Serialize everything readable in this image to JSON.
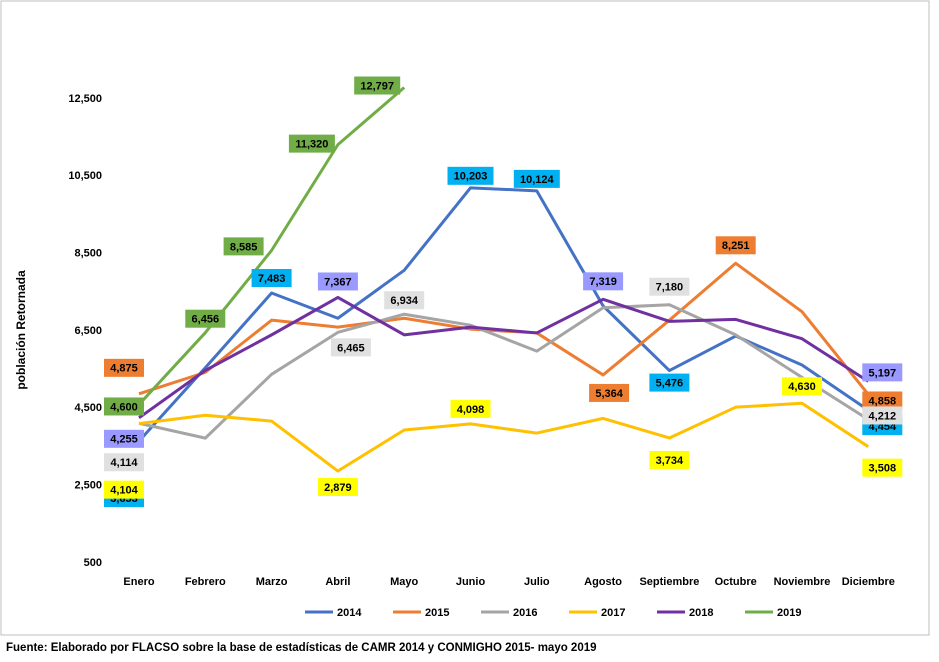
{
  "chart_data": {
    "type": "line",
    "y_label": "población Retornada",
    "footnote": "Fuente: Elaborado por FLACSO sobre la base de estadísticas de CAMR 2014 y CONMIGHO 2015- mayo 2019",
    "categories": [
      "Enero",
      "Febrero",
      "Marzo",
      "Abril",
      "Mayo",
      "Junio",
      "Julio",
      "Agosto",
      "Septiembre",
      "Octubre",
      "Noviembre",
      "Diciembre"
    ],
    "ylim": [
      500,
      14500
    ],
    "yticks": [
      500,
      {
        "value": 2500,
        "label": "2,500"
      },
      {
        "value": 4500,
        "label": "4,500"
      },
      {
        "value": 6500,
        "label": "6,500"
      },
      {
        "value": 8500,
        "label": "8,500"
      },
      {
        "value": 10500,
        "label": "10,500"
      },
      {
        "value": 12500,
        "label": "12,500"
      }
    ],
    "grid": false,
    "legend": "bottom",
    "series": [
      {
        "name": "2014",
        "color": "#4472c4",
        "label_color": "#00b0f0",
        "values": [
          3653,
          5550,
          7483,
          6830,
          8070,
          10203,
          10124,
          7150,
          5476,
          6370,
          5620,
          4454
        ],
        "value_labels": [
          "3,653",
          null,
          "7,483",
          null,
          null,
          "10,203",
          "10,124",
          null,
          "5,476",
          null,
          null,
          "4,454"
        ]
      },
      {
        "name": "2015",
        "color": "#ed7d31",
        "label_color": "#ed7d31",
        "values": [
          4875,
          5430,
          6780,
          6600,
          6830,
          6550,
          6450,
          5364,
          6780,
          8251,
          7000,
          4858
        ],
        "value_labels": [
          "4,875",
          null,
          null,
          null,
          null,
          null,
          null,
          "5,364",
          null,
          "8,251",
          null,
          "4,858"
        ]
      },
      {
        "name": "2016",
        "color": "#a5a5a5",
        "label_color": "#e0e0e0",
        "values": [
          4114,
          3730,
          5380,
          6465,
          6934,
          6650,
          5980,
          7100,
          7180,
          6400,
          5300,
          4212
        ],
        "value_labels": [
          "4,114",
          null,
          null,
          "6,465",
          "6,934",
          null,
          null,
          null,
          "7,180",
          null,
          null,
          "4,212"
        ]
      },
      {
        "name": "2017",
        "color": "#ffc000",
        "label_color": "#ffff00",
        "values": [
          4104,
          4320,
          4170,
          2879,
          3940,
          4098,
          3860,
          4240,
          3734,
          4530,
          4630,
          3508
        ],
        "value_labels": [
          "4,104",
          null,
          null,
          "2,879",
          null,
          "4,098",
          null,
          null,
          "3,734",
          null,
          "4,630",
          "3,508"
        ]
      },
      {
        "name": "2018",
        "color": "#7030a0",
        "label_color": "#9999ff",
        "values": [
          4255,
          5480,
          6400,
          7367,
          6400,
          6600,
          6450,
          7319,
          6750,
          6800,
          6300,
          5197
        ],
        "value_labels": [
          "4,255",
          null,
          null,
          "7,367",
          null,
          null,
          null,
          "7,319",
          null,
          null,
          null,
          "5,197"
        ]
      },
      {
        "name": "2019",
        "color": "#70ad47",
        "label_color": "#70ad47",
        "values": [
          4600,
          6456,
          8585,
          11320,
          12797,
          null,
          null,
          null,
          null,
          null,
          null,
          null
        ],
        "value_labels": [
          "4,600",
          "6,456",
          "8,585",
          "11,320",
          "12,797",
          null,
          null,
          null,
          null,
          null,
          null,
          null
        ]
      }
    ]
  }
}
